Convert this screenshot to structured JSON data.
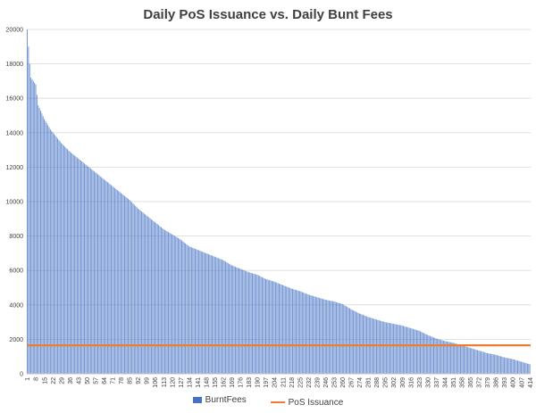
{
  "chart_data": {
    "type": "bar",
    "title": "Daily PoS Issuance vs. Daily Bunt Fees",
    "n_days": 414,
    "x_tick_labels": [
      "1",
      "8",
      "15",
      "22",
      "29",
      "36",
      "43",
      "50",
      "57",
      "64",
      "71",
      "78",
      "85",
      "92",
      "99",
      "106",
      "113",
      "120",
      "127",
      "134",
      "141",
      "148",
      "155",
      "162",
      "169",
      "176",
      "183",
      "190",
      "197",
      "204",
      "211",
      "218",
      "225",
      "232",
      "239",
      "246",
      "253",
      "260",
      "267",
      "274",
      "281",
      "288",
      "295",
      "302",
      "309",
      "316",
      "323",
      "330",
      "337",
      "344",
      "351",
      "358",
      "365",
      "372",
      "379",
      "386",
      "393",
      "400",
      "407",
      "414"
    ],
    "ylim": [
      0,
      20000
    ],
    "y_ticks": [
      0,
      2000,
      4000,
      6000,
      8000,
      10000,
      12000,
      14000,
      16000,
      18000,
      20000
    ],
    "y_tick_labels": [
      "0",
      "2000",
      "4000",
      "6000",
      "8000",
      "10000",
      "12000",
      "14000",
      "16000",
      "18000",
      "20000"
    ],
    "grid": true,
    "legend_position": "bottom",
    "series": [
      {
        "name": "BurntFees",
        "type": "bar",
        "color": "#4472C4",
        "curve_points": [
          [
            1,
            20000
          ],
          [
            2,
            19000
          ],
          [
            3,
            18000
          ],
          [
            4,
            17200
          ],
          [
            5,
            17100
          ],
          [
            8,
            16800
          ],
          [
            10,
            15600
          ],
          [
            15,
            14800
          ],
          [
            20,
            14200
          ],
          [
            29,
            13400
          ],
          [
            36,
            12900
          ],
          [
            43,
            12500
          ],
          [
            50,
            12100
          ],
          [
            57,
            11700
          ],
          [
            64,
            11300
          ],
          [
            71,
            10900
          ],
          [
            78,
            10500
          ],
          [
            85,
            10100
          ],
          [
            92,
            9600
          ],
          [
            99,
            9200
          ],
          [
            106,
            8800
          ],
          [
            113,
            8400
          ],
          [
            120,
            8100
          ],
          [
            127,
            7800
          ],
          [
            134,
            7400
          ],
          [
            141,
            7200
          ],
          [
            148,
            7000
          ],
          [
            155,
            6800
          ],
          [
            162,
            6600
          ],
          [
            169,
            6300
          ],
          [
            176,
            6100
          ],
          [
            183,
            5900
          ],
          [
            190,
            5750
          ],
          [
            197,
            5500
          ],
          [
            204,
            5350
          ],
          [
            211,
            5150
          ],
          [
            218,
            4950
          ],
          [
            225,
            4800
          ],
          [
            232,
            4600
          ],
          [
            239,
            4450
          ],
          [
            246,
            4300
          ],
          [
            253,
            4200
          ],
          [
            260,
            4050
          ],
          [
            267,
            3750
          ],
          [
            274,
            3500
          ],
          [
            281,
            3300
          ],
          [
            288,
            3150
          ],
          [
            295,
            3000
          ],
          [
            302,
            2900
          ],
          [
            309,
            2800
          ],
          [
            316,
            2650
          ],
          [
            323,
            2500
          ],
          [
            330,
            2250
          ],
          [
            337,
            2050
          ],
          [
            344,
            1900
          ],
          [
            351,
            1800
          ],
          [
            358,
            1650
          ],
          [
            365,
            1500
          ],
          [
            372,
            1350
          ],
          [
            379,
            1200
          ],
          [
            386,
            1100
          ],
          [
            393,
            950
          ],
          [
            400,
            850
          ],
          [
            407,
            700
          ],
          [
            414,
            550
          ]
        ]
      },
      {
        "name": "PoS Issuance",
        "type": "line",
        "color": "#ED7D31",
        "value": 1650
      }
    ]
  }
}
